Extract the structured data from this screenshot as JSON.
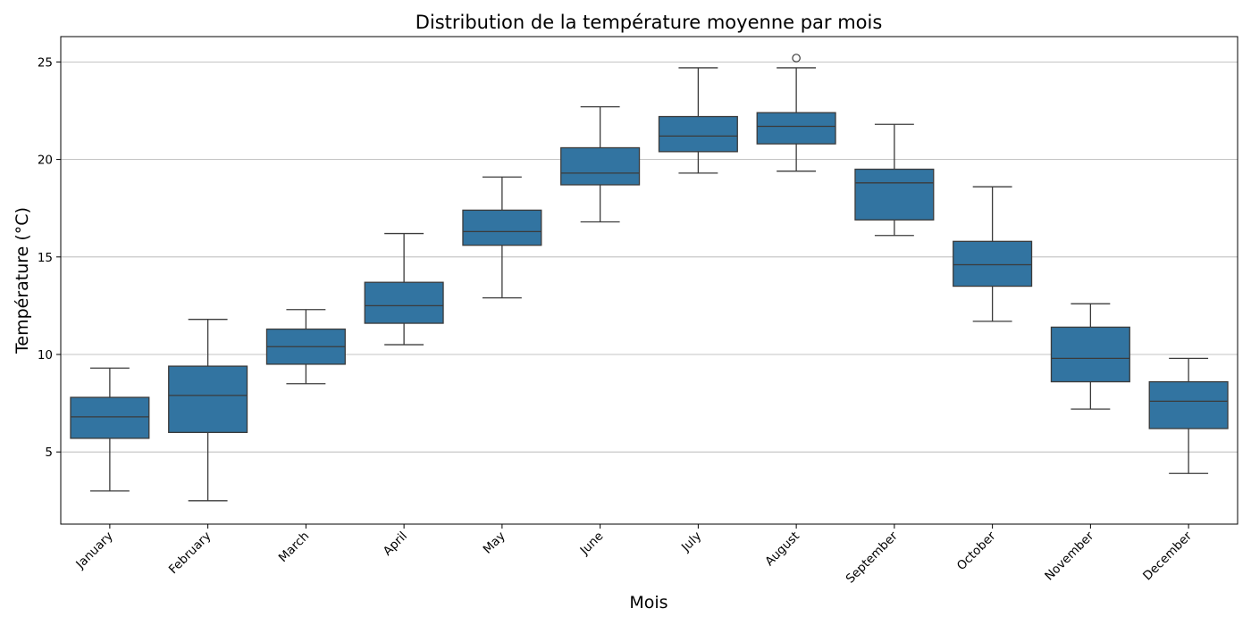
{
  "chart_data": {
    "type": "box",
    "title": "Distribution de la température moyenne par mois",
    "xlabel": "Mois",
    "ylabel": "Température (°C)",
    "ylim": [
      1.3,
      26.3
    ],
    "yticks": [
      5,
      10,
      15,
      20,
      25
    ],
    "grid": "horizontal",
    "box_color": "#3274a1",
    "edge_color": "#3b3b3b",
    "categories": [
      "January",
      "February",
      "March",
      "April",
      "May",
      "June",
      "July",
      "August",
      "September",
      "October",
      "November",
      "December"
    ],
    "boxes": [
      {
        "whisker_low": 3.0,
        "q1": 5.7,
        "median": 6.8,
        "q3": 7.8,
        "whisker_high": 9.3,
        "outliers": []
      },
      {
        "whisker_low": 2.5,
        "q1": 6.0,
        "median": 7.9,
        "q3": 9.4,
        "whisker_high": 11.8,
        "outliers": []
      },
      {
        "whisker_low": 8.5,
        "q1": 9.5,
        "median": 10.4,
        "q3": 11.3,
        "whisker_high": 12.3,
        "outliers": []
      },
      {
        "whisker_low": 10.5,
        "q1": 11.6,
        "median": 12.5,
        "q3": 13.7,
        "whisker_high": 16.2,
        "outliers": []
      },
      {
        "whisker_low": 12.9,
        "q1": 15.6,
        "median": 16.3,
        "q3": 17.4,
        "whisker_high": 19.1,
        "outliers": []
      },
      {
        "whisker_low": 16.8,
        "q1": 18.7,
        "median": 19.3,
        "q3": 20.6,
        "whisker_high": 22.7,
        "outliers": []
      },
      {
        "whisker_low": 19.3,
        "q1": 20.4,
        "median": 21.2,
        "q3": 22.2,
        "whisker_high": 24.7,
        "outliers": []
      },
      {
        "whisker_low": 19.4,
        "q1": 20.8,
        "median": 21.7,
        "q3": 22.4,
        "whisker_high": 24.7,
        "outliers": [
          25.2
        ]
      },
      {
        "whisker_low": 16.1,
        "q1": 16.9,
        "median": 18.8,
        "q3": 19.5,
        "whisker_high": 21.8,
        "outliers": []
      },
      {
        "whisker_low": 11.7,
        "q1": 13.5,
        "median": 14.6,
        "q3": 15.8,
        "whisker_high": 18.6,
        "outliers": []
      },
      {
        "whisker_low": 7.2,
        "q1": 8.6,
        "median": 9.8,
        "q3": 11.4,
        "whisker_high": 12.6,
        "outliers": []
      },
      {
        "whisker_low": 3.9,
        "q1": 6.2,
        "median": 7.6,
        "q3": 8.6,
        "whisker_high": 9.8,
        "outliers": []
      }
    ]
  }
}
